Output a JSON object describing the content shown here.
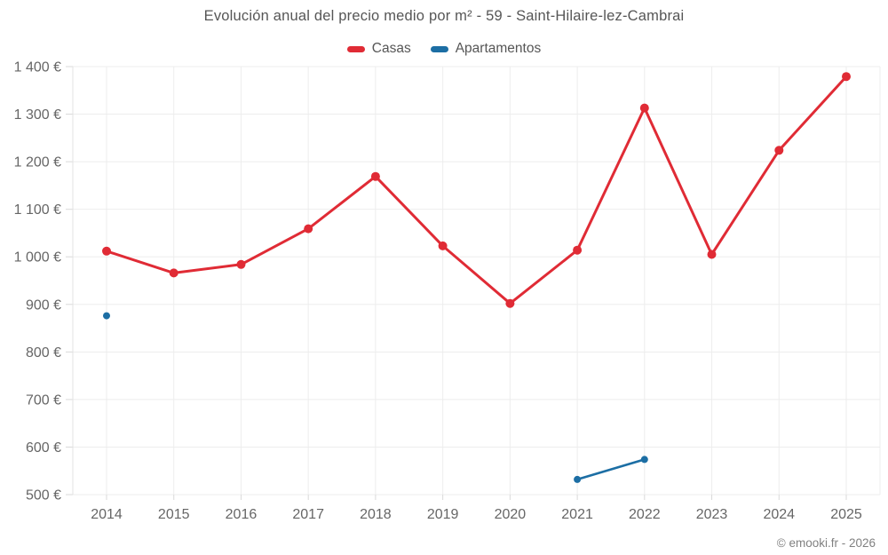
{
  "header": {
    "title": "Evolución anual del precio medio por m² - 59 - Saint-Hilaire-lez-Cambrai"
  },
  "legend": {
    "items": [
      {
        "label": "Casas",
        "color": "#e02b35"
      },
      {
        "label": "Apartamentos",
        "color": "#1c6ea4"
      }
    ]
  },
  "footer": {
    "credit": "© emooki.fr - 2026"
  },
  "chart_data": {
    "type": "line",
    "title": "Evolución anual del precio medio por m² - 59 - Saint-Hilaire-lez-Cambrai",
    "xlabel": "",
    "ylabel": "",
    "x": [
      "2014",
      "2015",
      "2016",
      "2017",
      "2018",
      "2019",
      "2020",
      "2021",
      "2022",
      "2023",
      "2024",
      "2025"
    ],
    "series": [
      {
        "name": "Casas",
        "color": "#e02b35",
        "values": [
          1012,
          966,
          984,
          1059,
          1169,
          1023,
          902,
          1014,
          1313,
          1005,
          1224,
          1379
        ]
      },
      {
        "name": "Apartamentos",
        "color": "#1c6ea4",
        "values": [
          876,
          null,
          null,
          null,
          null,
          null,
          null,
          null,
          null,
          null,
          null,
          null
        ],
        "values_note": "isolated point 2014; connected segment 2021-2022",
        "values2": [
          null,
          null,
          null,
          null,
          null,
          null,
          null,
          532,
          574,
          null,
          null,
          null
        ]
      }
    ],
    "ylim": [
      500,
      1400
    ],
    "yticks": [
      {
        "value": 500,
        "label": "500 €"
      },
      {
        "value": 600,
        "label": "600 €"
      },
      {
        "value": 700,
        "label": "700 €"
      },
      {
        "value": 800,
        "label": "800 €"
      },
      {
        "value": 900,
        "label": "900 €"
      },
      {
        "value": 1000,
        "label": "1 000 €"
      },
      {
        "value": 1100,
        "label": "1 100 €"
      },
      {
        "value": 1200,
        "label": "1 200 €"
      },
      {
        "value": 1300,
        "label": "1 300 €"
      },
      {
        "value": 1400,
        "label": "1 400 €"
      }
    ],
    "grid": true,
    "legend_position": "top",
    "currency": "€"
  }
}
